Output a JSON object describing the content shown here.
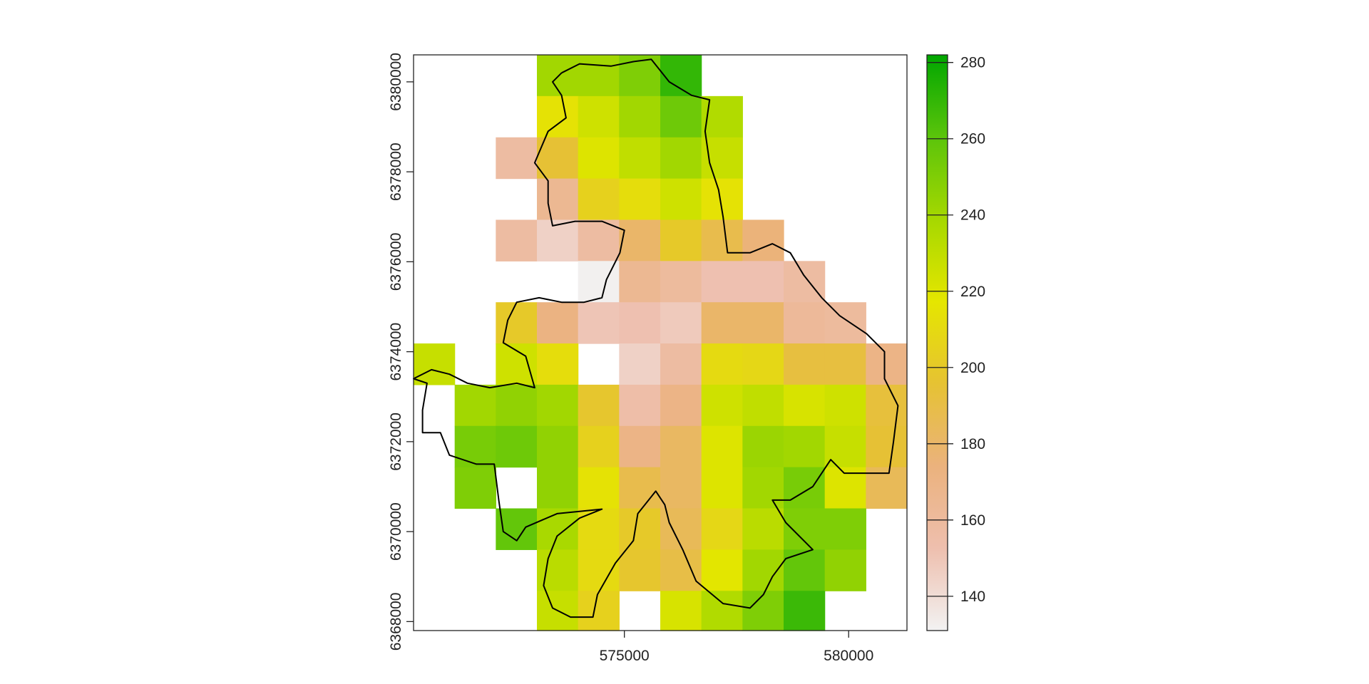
{
  "chart_data": {
    "type": "heatmap",
    "title": "",
    "xlabel": "",
    "ylabel": "",
    "xlim": [
      570300,
      581300
    ],
    "ylim": [
      6367800,
      6380600
    ],
    "x_tick_values": [
      575000,
      580000
    ],
    "x_tick_labels": [
      "575000",
      "580000"
    ],
    "y_tick_values": [
      6368000,
      6370000,
      6372000,
      6374000,
      6376000,
      6378000,
      6380000
    ],
    "y_tick_labels": [
      "6368000",
      "6370000",
      "6372000",
      "6374000",
      "6376000",
      "6378000",
      "6380000"
    ],
    "raster": {
      "origin_x": 570300,
      "origin_y": 6380600,
      "cell_size": 916.67,
      "ncol": 12,
      "nrow": 14,
      "values": [
        [
          null,
          null,
          null,
          240,
          240,
          250,
          270,
          null,
          null,
          null,
          null,
          null
        ],
        [
          null,
          null,
          null,
          215,
          225,
          240,
          255,
          235,
          null,
          null,
          null,
          null
        ],
        [
          null,
          null,
          158,
          195,
          220,
          230,
          240,
          228,
          null,
          null,
          null,
          null
        ],
        [
          null,
          null,
          null,
          165,
          205,
          212,
          225,
          215,
          null,
          null,
          null,
          null
        ],
        [
          null,
          null,
          158,
          145,
          158,
          180,
          200,
          188,
          175,
          null,
          null,
          null
        ],
        [
          null,
          null,
          null,
          null,
          132,
          165,
          160,
          152,
          152,
          158,
          null,
          null
        ],
        [
          null,
          null,
          200,
          172,
          150,
          152,
          148,
          180,
          180,
          162,
          160,
          null
        ],
        [
          228,
          null,
          225,
          212,
          null,
          145,
          158,
          210,
          208,
          192,
          192,
          170
        ],
        [
          null,
          240,
          245,
          240,
          198,
          155,
          170,
          225,
          230,
          222,
          225,
          193
        ],
        [
          null,
          252,
          255,
          245,
          205,
          170,
          182,
          220,
          242,
          240,
          228,
          195
        ],
        [
          null,
          250,
          null,
          245,
          215,
          188,
          182,
          220,
          240,
          252,
          220,
          185
        ],
        [
          null,
          null,
          258,
          238,
          210,
          200,
          185,
          208,
          232,
          250,
          250,
          null
        ],
        [
          null,
          null,
          null,
          232,
          210,
          198,
          190,
          218,
          240,
          258,
          245,
          null
        ],
        [
          null,
          null,
          null,
          228,
          205,
          null,
          222,
          235,
          250,
          268,
          null,
          null
        ]
      ]
    },
    "legend": {
      "min": 131,
      "max": 282,
      "tick_values": [
        140,
        160,
        180,
        200,
        220,
        240,
        260,
        280
      ],
      "tick_labels": [
        "140",
        "160",
        "180",
        "200",
        "220",
        "240",
        "260",
        "280"
      ],
      "placement": "right"
    },
    "colors": {
      "outline": "#000000",
      "frame": "#222222",
      "palette_stops": [
        "#f2f2f2",
        "#eebfae",
        "#ebb27d",
        "#e6c233",
        "#e5e600",
        "#a6d800",
        "#5bc40b",
        "#00a600"
      ]
    },
    "boundary_outline": [
      [
        573600,
        6380200
      ],
      [
        574000,
        6380400
      ],
      [
        574700,
        6380350
      ],
      [
        575200,
        6380450
      ],
      [
        575600,
        6380500
      ],
      [
        576000,
        6380000
      ],
      [
        576500,
        6379700
      ],
      [
        576900,
        6379600
      ],
      [
        576800,
        6378900
      ],
      [
        576900,
        6378200
      ],
      [
        577100,
        6377600
      ],
      [
        577200,
        6377000
      ],
      [
        577300,
        6376200
      ],
      [
        577800,
        6376200
      ],
      [
        578300,
        6376400
      ],
      [
        578700,
        6376200
      ],
      [
        579000,
        6375700
      ],
      [
        579400,
        6375200
      ],
      [
        579800,
        6374800
      ],
      [
        580400,
        6374400
      ],
      [
        580800,
        6374000
      ],
      [
        580800,
        6373400
      ],
      [
        581100,
        6372800
      ],
      [
        581000,
        6372000
      ],
      [
        580900,
        6371300
      ],
      [
        580500,
        6371300
      ],
      [
        579900,
        6371300
      ],
      [
        579600,
        6371600
      ],
      [
        579200,
        6371000
      ],
      [
        578700,
        6370700
      ],
      [
        578300,
        6370700
      ],
      [
        578600,
        6370200
      ],
      [
        579200,
        6369600
      ],
      [
        578600,
        6369400
      ],
      [
        578300,
        6369000
      ],
      [
        578100,
        6368600
      ],
      [
        577800,
        6368300
      ],
      [
        577200,
        6368400
      ],
      [
        576600,
        6368900
      ],
      [
        576300,
        6369600
      ],
      [
        576000,
        6370200
      ],
      [
        575900,
        6370600
      ],
      [
        575700,
        6370900
      ],
      [
        575300,
        6370400
      ],
      [
        575200,
        6369800
      ],
      [
        574800,
        6369300
      ],
      [
        574400,
        6368600
      ],
      [
        574300,
        6368100
      ],
      [
        573800,
        6368100
      ],
      [
        573400,
        6368300
      ],
      [
        573200,
        6368800
      ],
      [
        573300,
        6369400
      ],
      [
        573500,
        6369900
      ],
      [
        574000,
        6370300
      ],
      [
        574500,
        6370500
      ],
      [
        573500,
        6370400
      ],
      [
        572800,
        6370100
      ],
      [
        572600,
        6369800
      ],
      [
        572300,
        6370000
      ],
      [
        572200,
        6370700
      ],
      [
        572100,
        6371500
      ],
      [
        571700,
        6371500
      ],
      [
        571100,
        6371700
      ],
      [
        570900,
        6372200
      ],
      [
        570500,
        6372200
      ],
      [
        570500,
        6372700
      ],
      [
        570600,
        6373300
      ],
      [
        570300,
        6373400
      ],
      [
        570700,
        6373600
      ],
      [
        571100,
        6373500
      ],
      [
        571500,
        6373300
      ],
      [
        572000,
        6373200
      ],
      [
        572600,
        6373300
      ],
      [
        573000,
        6373200
      ],
      [
        572800,
        6373900
      ],
      [
        572300,
        6374200
      ],
      [
        572400,
        6374700
      ],
      [
        572600,
        6375100
      ],
      [
        573100,
        6375200
      ],
      [
        573600,
        6375100
      ],
      [
        574100,
        6375100
      ],
      [
        574500,
        6375200
      ],
      [
        574600,
        6375600
      ],
      [
        574900,
        6376200
      ],
      [
        575000,
        6376700
      ],
      [
        574500,
        6376900
      ],
      [
        573900,
        6376900
      ],
      [
        573400,
        6376800
      ],
      [
        573300,
        6377300
      ],
      [
        573300,
        6377800
      ],
      [
        573000,
        6378200
      ],
      [
        573300,
        6378900
      ],
      [
        573700,
        6379200
      ],
      [
        573600,
        6379700
      ],
      [
        573400,
        6380000
      ],
      [
        573600,
        6380200
      ]
    ]
  }
}
